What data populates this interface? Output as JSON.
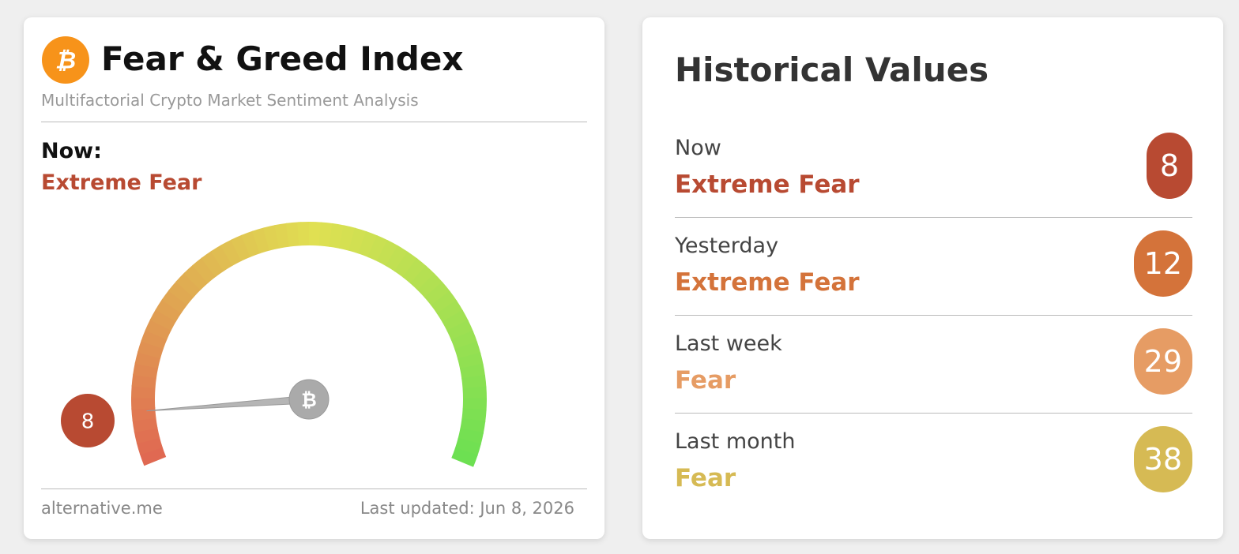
{
  "gauge_card": {
    "title": "Fear & Greed Index",
    "subtitle": "Multifactorial Crypto Market Sentiment Analysis",
    "now_label": "Now:",
    "classification": "Extreme Fear",
    "value": 8,
    "color": "#b84a32",
    "source": "alternative.me",
    "updated": "Last updated: Jun 8, 2026"
  },
  "history": {
    "title": "Historical Values",
    "rows": [
      {
        "period": "Now",
        "classification": "Extreme Fear",
        "value": 8,
        "color": "#b84a32"
      },
      {
        "period": "Yesterday",
        "classification": "Extreme Fear",
        "value": 12,
        "color": "#d4733a"
      },
      {
        "period": "Last week",
        "classification": "Fear",
        "value": 29,
        "color": "#e69c64"
      },
      {
        "period": "Last month",
        "classification": "Fear",
        "value": 38,
        "color": "#d6ba54"
      }
    ]
  }
}
